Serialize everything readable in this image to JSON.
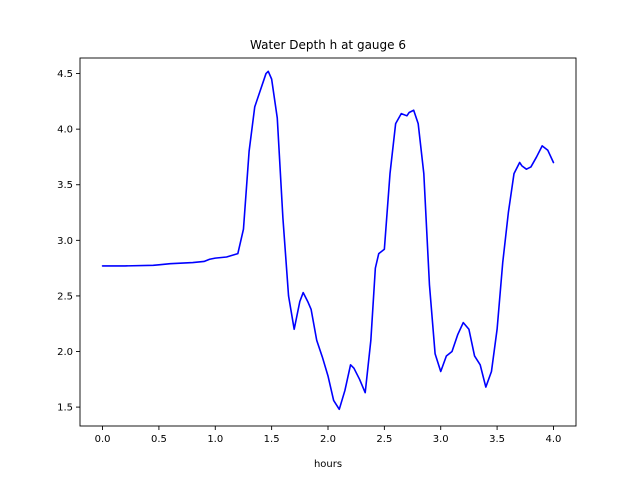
{
  "chart_data": {
    "type": "line",
    "title": "Water Depth h at gauge 6",
    "xlabel": "hours",
    "ylabel": "",
    "xlim": [
      -0.2,
      4.2
    ],
    "ylim": [
      1.33,
      4.64
    ],
    "x_ticks": [
      0.0,
      0.5,
      1.0,
      1.5,
      2.0,
      2.5,
      3.0,
      3.5,
      4.0
    ],
    "x_tick_labels": [
      "0.0",
      "0.5",
      "1.0",
      "1.5",
      "2.0",
      "2.5",
      "3.0",
      "3.5",
      "4.0"
    ],
    "y_ticks": [
      1.5,
      2.0,
      2.5,
      3.0,
      3.5,
      4.0,
      4.5
    ],
    "y_tick_labels": [
      "1.5",
      "2.0",
      "2.5",
      "3.0",
      "3.5",
      "4.0",
      "4.5"
    ],
    "grid": false,
    "series": [
      {
        "color": "#0000ff",
        "x": [
          0.0,
          0.2,
          0.45,
          0.5,
          0.6,
          0.8,
          0.9,
          0.95,
          1.0,
          1.1,
          1.2,
          1.25,
          1.3,
          1.35,
          1.4,
          1.45,
          1.47,
          1.5,
          1.55,
          1.6,
          1.65,
          1.7,
          1.75,
          1.78,
          1.82,
          1.85,
          1.9,
          1.95,
          2.0,
          2.05,
          2.1,
          2.15,
          2.2,
          2.23,
          2.28,
          2.33,
          2.38,
          2.42,
          2.45,
          2.5,
          2.55,
          2.6,
          2.65,
          2.7,
          2.72,
          2.76,
          2.8,
          2.85,
          2.9,
          2.95,
          3.0,
          3.05,
          3.1,
          3.15,
          3.2,
          3.25,
          3.3,
          3.35,
          3.4,
          3.45,
          3.5,
          3.55,
          3.6,
          3.65,
          3.7,
          3.72,
          3.76,
          3.8,
          3.85,
          3.9,
          3.95,
          4.0
        ],
        "y": [
          2.77,
          2.77,
          2.775,
          2.78,
          2.79,
          2.8,
          2.81,
          2.83,
          2.84,
          2.85,
          2.88,
          3.1,
          3.8,
          4.2,
          4.35,
          4.5,
          4.52,
          4.45,
          4.1,
          3.2,
          2.5,
          2.2,
          2.45,
          2.53,
          2.45,
          2.38,
          2.1,
          1.95,
          1.78,
          1.56,
          1.48,
          1.65,
          1.88,
          1.85,
          1.75,
          1.63,
          2.1,
          2.75,
          2.88,
          2.92,
          3.6,
          4.05,
          4.14,
          4.12,
          4.15,
          4.17,
          4.05,
          3.6,
          2.6,
          1.98,
          1.82,
          1.96,
          2.0,
          2.15,
          2.26,
          2.2,
          1.96,
          1.88,
          1.68,
          1.82,
          2.2,
          2.8,
          3.25,
          3.6,
          3.7,
          3.67,
          3.64,
          3.66,
          3.75,
          3.85,
          3.81,
          3.7
        ]
      }
    ]
  }
}
